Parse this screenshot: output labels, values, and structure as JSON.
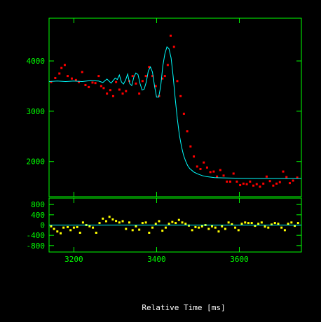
{
  "chart_data": {
    "type": "scatter",
    "xlabel": "Relative Time [ms]",
    "x_ticks": [
      3200,
      3400,
      3600
    ],
    "xlim": [
      3140,
      3750
    ],
    "colors": {
      "background": "#000000",
      "axes": "#00ff00",
      "data_points": "#ff0000",
      "fit_line": "#00ffff",
      "residuals": "#ffff00",
      "xlabel": "#ffffff"
    },
    "panels": [
      {
        "name": "signal",
        "ylim": [
          1300,
          4850
        ],
        "y_ticks": [
          2000,
          3000,
          4000
        ],
        "series": [
          {
            "kind": "points",
            "color": "#ff0000",
            "x": [
              3145,
              3155,
              3165,
              3170,
              3178,
              3185,
              3195,
              3205,
              3212,
              3220,
              3228,
              3236,
              3245,
              3252,
              3260,
              3266,
              3272,
              3280,
              3288,
              3295,
              3302,
              3310,
              3318,
              3326,
              3334,
              3342,
              3350,
              3358,
              3366,
              3374,
              3382,
              3390,
              3398,
              3406,
              3414,
              3420,
              3427,
              3434,
              3442,
              3450,
              3458,
              3466,
              3474,
              3482,
              3490,
              3498,
              3506,
              3514,
              3522,
              3530,
              3538,
              3546,
              3554,
              3562,
              3570,
              3578,
              3586,
              3594,
              3602,
              3610,
              3618,
              3626,
              3634,
              3642,
              3650,
              3658,
              3666,
              3674,
              3682,
              3690,
              3698,
              3706,
              3714,
              3722,
              3730,
              3740
            ],
            "y": [
              3580,
              3660,
              3750,
              3860,
              3920,
              3700,
              3650,
              3620,
              3580,
              3780,
              3520,
              3480,
              3570,
              3560,
              3700,
              3500,
              3460,
              3350,
              3420,
              3300,
              3580,
              3430,
              3350,
              3400,
              3600,
              3700,
              3550,
              3350,
              3600,
              3700,
              3880,
              3700,
              3500,
              3300,
              3650,
              3700,
              3920,
              4500,
              4280,
              3600,
              3300,
              2950,
              2600,
              2300,
              2100,
              1900,
              1850,
              1980,
              1880,
              1790,
              1800,
              1700,
              1830,
              1720,
              1600,
              1600,
              1760,
              1600,
              1530,
              1560,
              1550,
              1600,
              1520,
              1550,
              1500,
              1560,
              1700,
              1610,
              1520,
              1560,
              1590,
              1800,
              1690,
              1570,
              1620,
              1680
            ]
          },
          {
            "kind": "line",
            "color": "#00ffff",
            "x": [
              3140,
              3160,
              3180,
              3200,
              3220,
              3240,
              3260,
              3270,
              3280,
              3290,
              3300,
              3305,
              3310,
              3315,
              3320,
              3325,
              3330,
              3335,
              3340,
              3345,
              3350,
              3355,
              3360,
              3365,
              3370,
              3375,
              3380,
              3385,
              3390,
              3395,
              3400,
              3405,
              3410,
              3415,
              3420,
              3425,
              3430,
              3435,
              3440,
              3445,
              3450,
              3455,
              3460,
              3465,
              3470,
              3475,
              3480,
              3490,
              3500,
              3510,
              3520,
              3530,
              3540,
              3560,
              3580,
              3600,
              3620,
              3650,
              3700,
              3750
            ],
            "y": [
              3590,
              3600,
              3590,
              3600,
              3590,
              3610,
              3600,
              3570,
              3640,
              3560,
              3660,
              3630,
              3720,
              3580,
              3540,
              3620,
              3740,
              3550,
              3510,
              3680,
              3760,
              3730,
              3550,
              3420,
              3440,
              3580,
              3800,
              3880,
              3780,
              3500,
              3280,
              3280,
              3500,
              3900,
              4140,
              4280,
              4240,
              4060,
              3700,
              3250,
              2850,
              2530,
              2300,
              2130,
              2010,
              1920,
              1860,
              1790,
              1750,
              1720,
              1700,
              1690,
              1680,
              1675,
              1670,
              1668,
              1665,
              1664,
              1663,
              1663
            ]
          }
        ]
      },
      {
        "name": "residuals",
        "ylim": [
          -1050,
          1050
        ],
        "y_ticks": [
          -800,
          -400,
          0,
          400,
          800
        ],
        "y_tick_labels": [
          "-800",
          "-400",
          "0",
          "400",
          "800"
        ],
        "series": [
          {
            "kind": "points",
            "color": "#ffff00",
            "x": [
              3145,
              3152,
              3160,
              3168,
              3175,
              3185,
              3192,
              3200,
              3208,
              3215,
              3222,
              3230,
              3238,
              3246,
              3254,
              3262,
              3270,
              3278,
              3286,
              3294,
              3302,
              3310,
              3318,
              3326,
              3334,
              3342,
              3350,
              3358,
              3366,
              3374,
              3382,
              3390,
              3398,
              3406,
              3414,
              3422,
              3430,
              3438,
              3446,
              3454,
              3462,
              3470,
              3478,
              3486,
              3494,
              3502,
              3510,
              3518,
              3526,
              3534,
              3542,
              3550,
              3558,
              3566,
              3574,
              3582,
              3590,
              3598,
              3606,
              3614,
              3622,
              3630,
              3638,
              3646,
              3654,
              3662,
              3670,
              3678,
              3686,
              3694,
              3702,
              3710,
              3718,
              3726,
              3734,
              3742
            ],
            "y": [
              -50,
              -150,
              -250,
              -320,
              -100,
              -80,
              -200,
              -100,
              -80,
              -300,
              100,
              0,
              -50,
              -100,
              -300,
              80,
              250,
              150,
              320,
              220,
              160,
              100,
              150,
              -150,
              100,
              -200,
              -50,
              -180,
              80,
              100,
              -300,
              -100,
              50,
              150,
              -220,
              -100,
              50,
              120,
              80,
              200,
              100,
              50,
              -20,
              -200,
              -80,
              -100,
              -50,
              0,
              -150,
              -50,
              -100,
              -250,
              -50,
              -150,
              100,
              30,
              -100,
              -200,
              50,
              100,
              80,
              80,
              -30,
              50,
              100,
              -60,
              -100,
              20,
              80,
              50,
              -100,
              -200,
              50,
              100,
              -30,
              80
            ]
          },
          {
            "kind": "zero-line",
            "color": "#00ffff",
            "y": 0
          }
        ]
      }
    ]
  }
}
